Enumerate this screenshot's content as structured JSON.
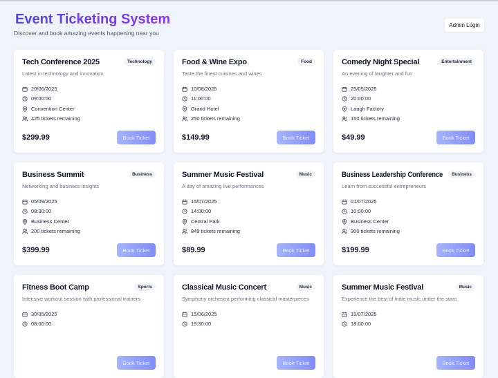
{
  "header": {
    "title": "Event Ticketing System",
    "subtitle": "Discover and book amazing events happening near you",
    "admin_label": "Admin Login"
  },
  "book_label": "Book Ticket",
  "events": [
    {
      "title": "Tech Conference 2025",
      "category": "Technology",
      "description": "Latest in technology and innovation",
      "date": "20/06/2025",
      "time": "09:00:00",
      "location": "Convention Center",
      "tickets": "425 tickets remaining",
      "price": "$299.99"
    },
    {
      "title": "Food & Wine Expo",
      "category": "Food",
      "description": "Taste the finest cuisines and wines",
      "date": "10/08/2025",
      "time": "11:00:00",
      "location": "Grand Hotel",
      "tickets": "250 tickets remaining",
      "price": "$149.99"
    },
    {
      "title": "Comedy Night Special",
      "category": "Entertainment",
      "description": "An evening of laughter and fun",
      "date": "25/05/2025",
      "time": "20:00:00",
      "location": "Laugh Factory",
      "tickets": "150 tickets remaining",
      "price": "$49.99"
    },
    {
      "title": "Business Summit",
      "category": "Business",
      "description": "Networking and business insights",
      "date": "05/09/2025",
      "time": "08:30:00",
      "location": "Business Center",
      "tickets": "200 tickets remaining",
      "price": "$399.99"
    },
    {
      "title": "Summer Music Festival",
      "category": "Music",
      "description": "A day of amazing live performances",
      "date": "15/07/2025",
      "time": "14:00:00",
      "location": "Central Park",
      "tickets": "849 tickets remaining",
      "price": "$89.99"
    },
    {
      "title": "Business Leadership Conference",
      "category": "Business",
      "description": "Learn from successful entrepreneurs",
      "date": "01/07/2025",
      "time": "10:00:00",
      "location": "Business Center",
      "tickets": "300 tickets remaining",
      "price": "$199.99"
    },
    {
      "title": "Fitness Boot Camp",
      "category": "Sports",
      "description": "Intensive workout session with professional trainers",
      "date": "30/05/2025",
      "time": "08:00:00"
    },
    {
      "title": "Classical Music Concert",
      "category": "Music",
      "description": "Symphony orchestra performing classical masterpieces",
      "date": "15/06/2025",
      "time": "19:30:00"
    },
    {
      "title": "Summer Music Festival",
      "category": "Music",
      "description": "Experience the best of indie music under the stars",
      "date": "15/07/2025",
      "time": "18:00:00"
    }
  ]
}
